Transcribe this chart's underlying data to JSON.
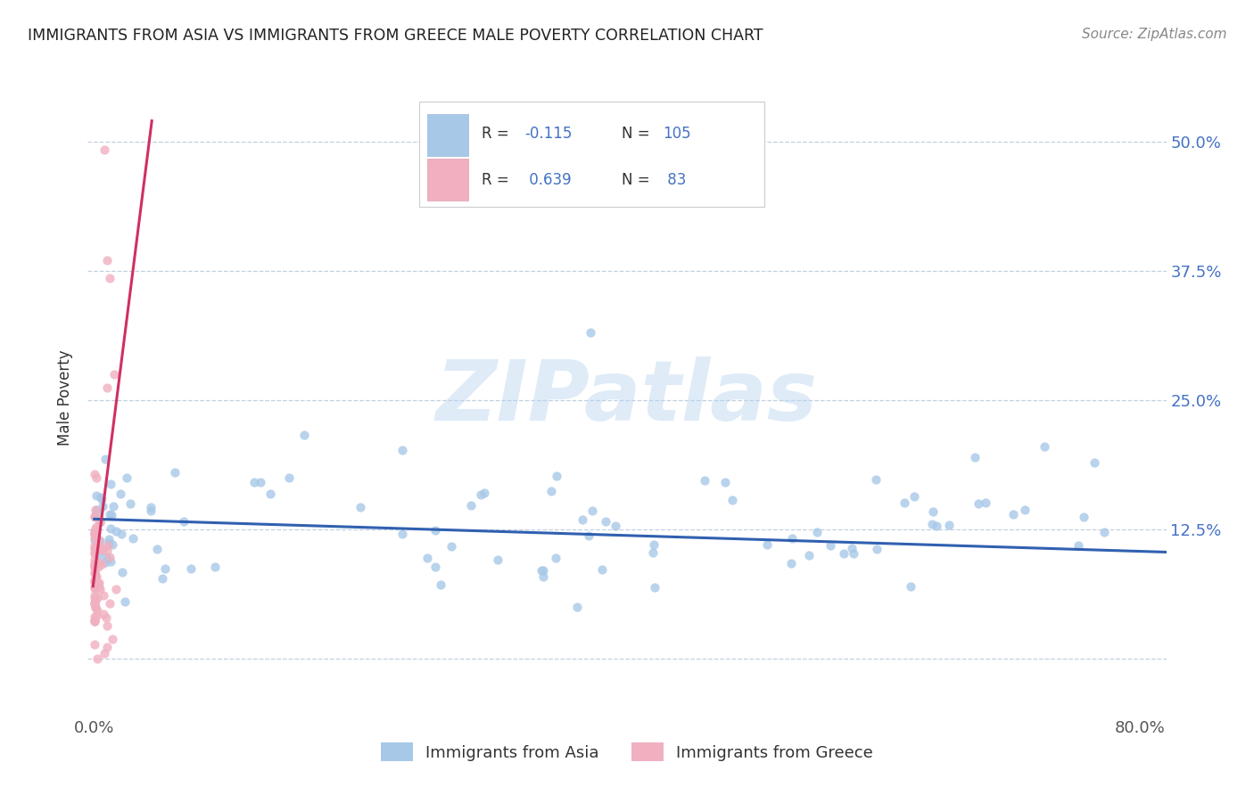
{
  "title": "IMMIGRANTS FROM ASIA VS IMMIGRANTS FROM GREECE MALE POVERTY CORRELATION CHART",
  "source": "Source: ZipAtlas.com",
  "ylabel": "Male Poverty",
  "yticks": [
    0.0,
    0.125,
    0.25,
    0.375,
    0.5
  ],
  "ytick_labels": [
    "",
    "12.5%",
    "25.0%",
    "37.5%",
    "50.0%"
  ],
  "xlim": [
    -0.005,
    0.82
  ],
  "ylim": [
    -0.055,
    0.56
  ],
  "watermark_text": "ZIPatlas",
  "asia_color": "#a8c8e8",
  "asia_line_color": "#3060b0",
  "greece_color": "#f0b0c0",
  "greece_line_color": "#d03060",
  "legend_asia_r": "-0.115",
  "legend_asia_n": "105",
  "legend_greece_r": "0.639",
  "legend_greece_n": "83",
  "bottom_legend_asia": "Immigrants from Asia",
  "bottom_legend_greece": "Immigrants from Greece"
}
